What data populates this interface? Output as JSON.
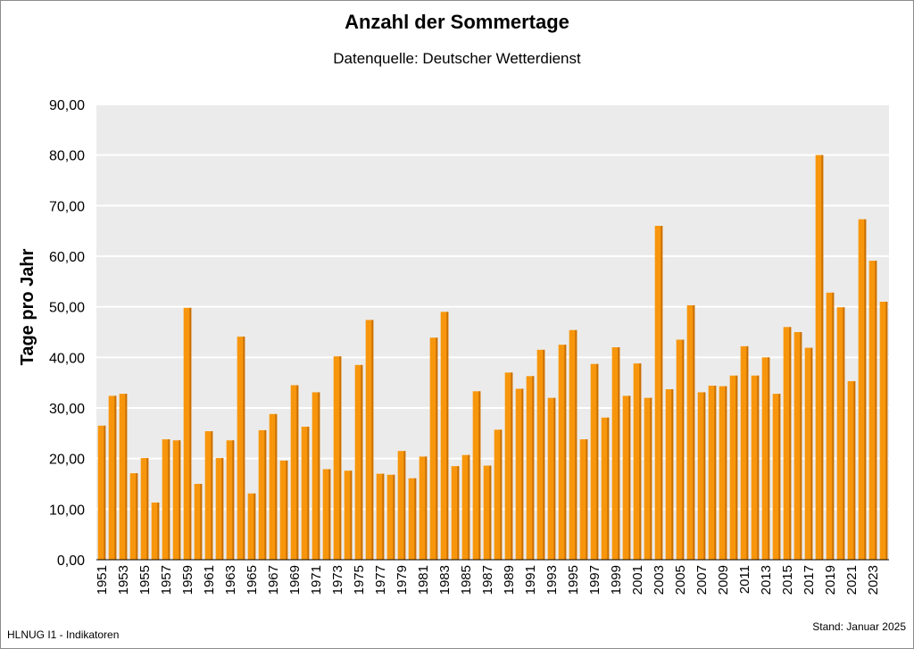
{
  "chart_data": {
    "type": "bar",
    "title": "Anzahl der Sommertage",
    "subtitle": "Datenquelle: Deutscher Wetterdienst",
    "xlabel": "",
    "ylabel": "Tage pro Jahr",
    "ylim": [
      0,
      90
    ],
    "yticks": [
      "0,00",
      "10,00",
      "20,00",
      "30,00",
      "40,00",
      "50,00",
      "60,00",
      "70,00",
      "80,00",
      "90,00"
    ],
    "grid": true,
    "categories": [
      1951,
      1952,
      1953,
      1954,
      1955,
      1956,
      1957,
      1958,
      1959,
      1960,
      1961,
      1962,
      1963,
      1964,
      1965,
      1966,
      1967,
      1968,
      1969,
      1970,
      1971,
      1972,
      1973,
      1974,
      1975,
      1976,
      1977,
      1978,
      1979,
      1980,
      1981,
      1982,
      1983,
      1984,
      1985,
      1986,
      1987,
      1988,
      1989,
      1990,
      1991,
      1992,
      1993,
      1994,
      1995,
      1996,
      1997,
      1998,
      1999,
      2000,
      2001,
      2002,
      2003,
      2004,
      2005,
      2006,
      2007,
      2008,
      2009,
      2010,
      2011,
      2012,
      2013,
      2014,
      2015,
      2016,
      2017,
      2018,
      2019,
      2020,
      2021,
      2022,
      2023,
      2024
    ],
    "x_tick_labels": [
      "1951",
      "1953",
      "1955",
      "1957",
      "1959",
      "1961",
      "1963",
      "1965",
      "1967",
      "1969",
      "1971",
      "1973",
      "1975",
      "1977",
      "1979",
      "1981",
      "1983",
      "1985",
      "1987",
      "1989",
      "1991",
      "1993",
      "1995",
      "1997",
      "1999",
      "2001",
      "2003",
      "2005",
      "2007",
      "2009",
      "2011",
      "2013",
      "2015",
      "2017",
      "2019",
      "2021",
      "2023"
    ],
    "values": [
      26.5,
      32.4,
      32.8,
      17.1,
      20.1,
      11.3,
      23.8,
      23.6,
      49.8,
      15.0,
      25.4,
      20.1,
      23.6,
      44.1,
      13.1,
      25.6,
      28.8,
      19.6,
      34.5,
      26.3,
      33.1,
      17.9,
      40.2,
      17.6,
      38.5,
      47.4,
      17.0,
      16.8,
      21.5,
      16.1,
      20.4,
      43.9,
      49.0,
      18.5,
      20.7,
      33.3,
      18.6,
      25.7,
      37.0,
      33.8,
      36.3,
      41.5,
      32.0,
      42.5,
      45.4,
      23.8,
      38.7,
      28.1,
      42.0,
      32.4,
      38.8,
      32.0,
      66.0,
      33.7,
      43.5,
      50.3,
      33.1,
      34.4,
      34.3,
      36.4,
      42.2,
      36.4,
      40.0,
      32.8,
      46.0,
      45.0,
      41.9,
      80.0,
      52.8,
      49.9,
      35.3,
      67.3,
      59.1,
      51.0
    ],
    "colors": {
      "bar": "#f7960c",
      "bar_dark": "#c96f00",
      "plot_bg": "#ebebeb",
      "grid": "#ffffff"
    }
  },
  "footer": {
    "left": "HLNUG I1 - Indikatoren",
    "right": "Stand: Januar 2025"
  }
}
